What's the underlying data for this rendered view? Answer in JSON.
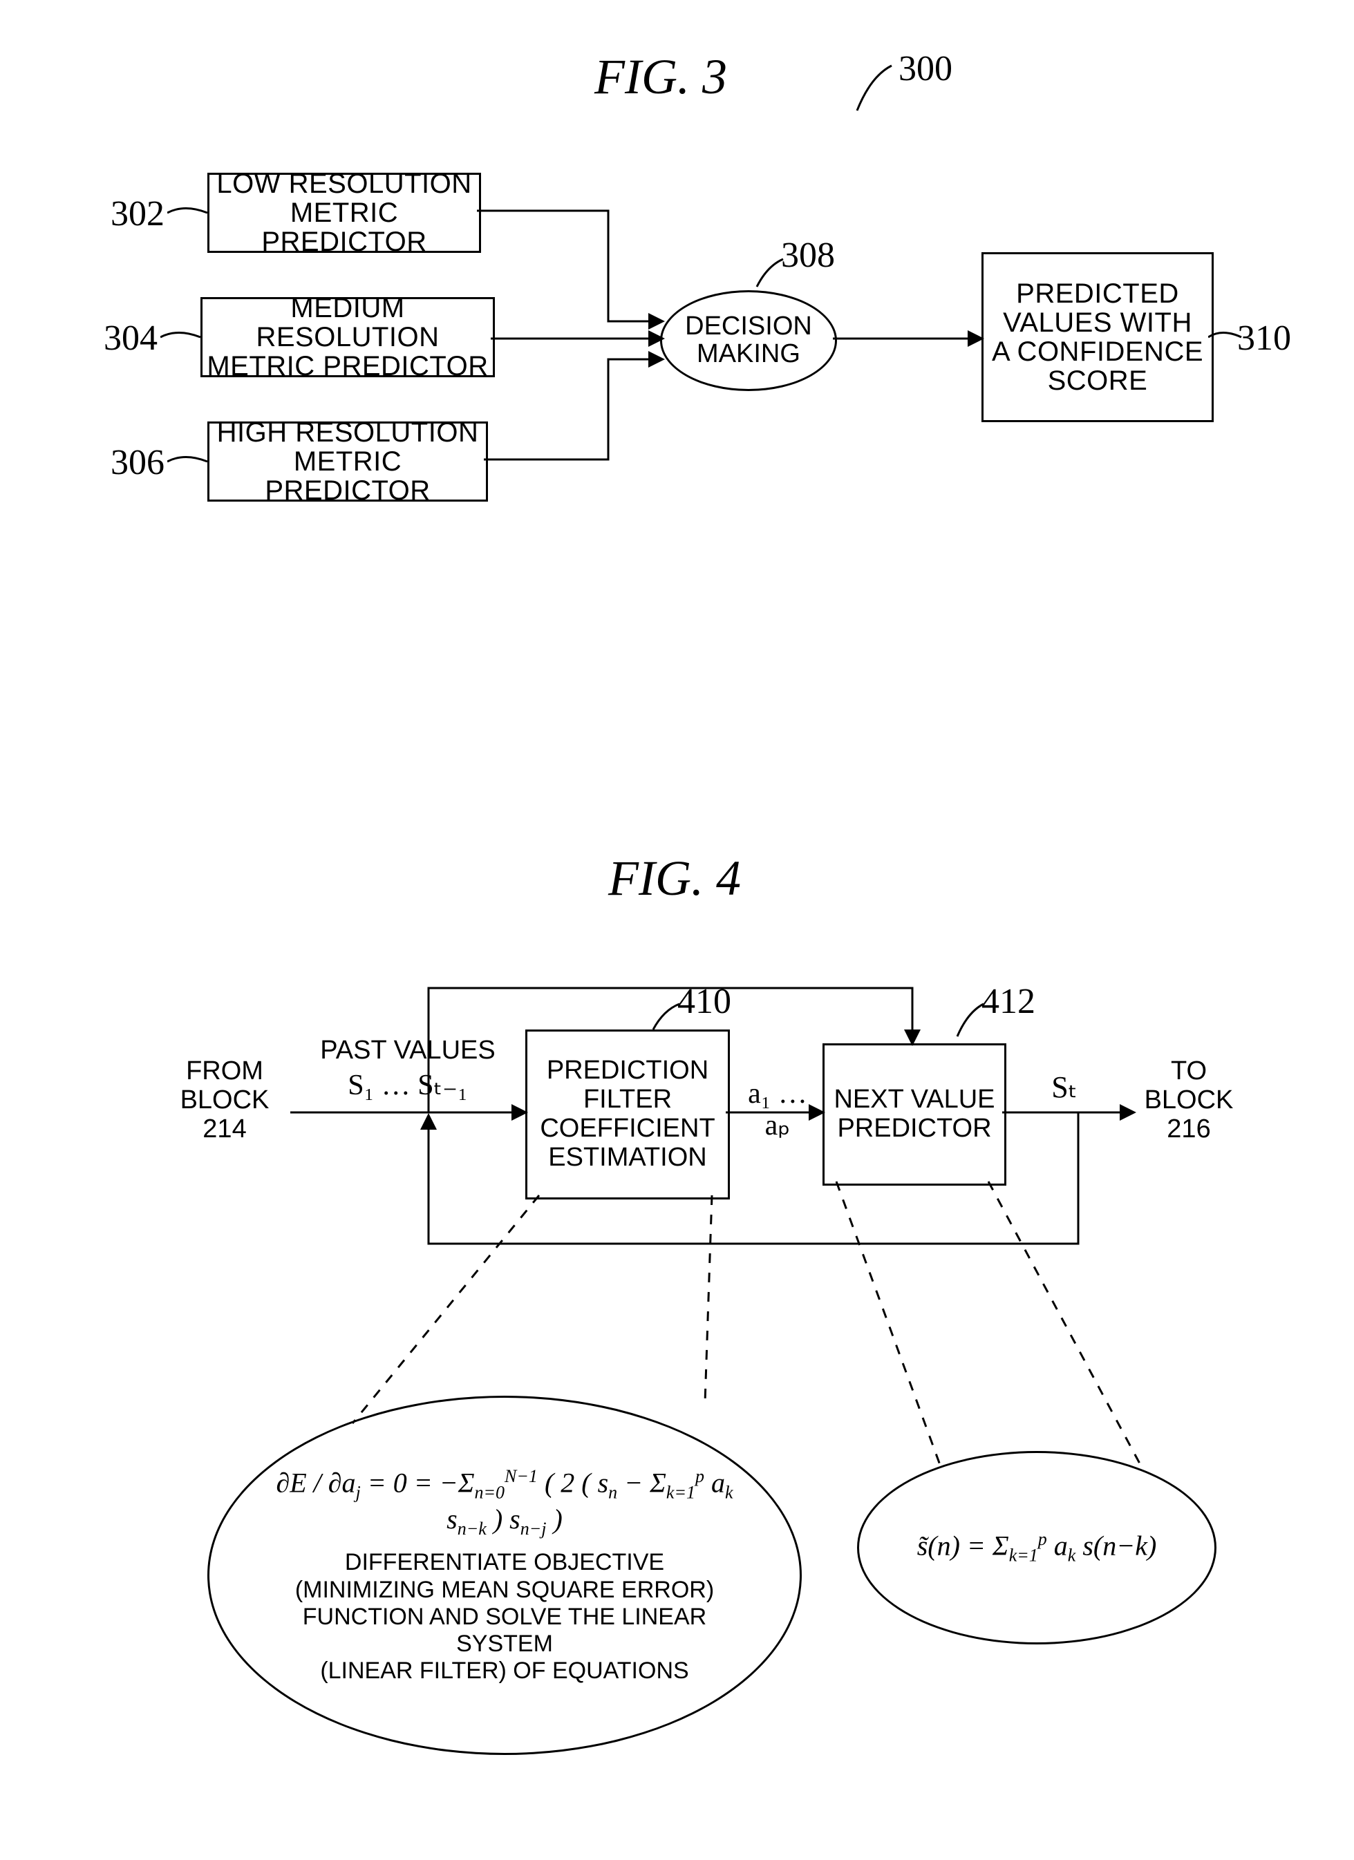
{
  "fig3": {
    "title": "FIG.  3",
    "ref300": "300",
    "box302": {
      "text": "LOW RESOLUTION\nMETRIC PREDICTOR",
      "ref": "302"
    },
    "box304": {
      "text": "MEDIUM RESOLUTION\nMETRIC PREDICTOR",
      "ref": "304"
    },
    "box306": {
      "text": "HIGH RESOLUTION\nMETRIC PREDICTOR",
      "ref": "306"
    },
    "decision": {
      "text": "DECISION\nMAKING",
      "ref": "308"
    },
    "box310": {
      "text": "PREDICTED\nVALUES WITH\nA CONFIDENCE\nSCORE",
      "ref": "310"
    },
    "style": {
      "box_border_color": "#000000",
      "box_bg_color": "#ffffff",
      "box_border_width": 3,
      "font_color": "#000000",
      "predictor_fontsize": 40,
      "decision_fontsize": 38,
      "reflabel_fontsize": 52,
      "title_fontsize": 72,
      "arrow_stroke": "#000000",
      "arrow_width": 3
    }
  },
  "fig4": {
    "title": "FIG.  4",
    "from_block": "FROM\nBLOCK\n214",
    "past_values_label": "PAST VALUES",
    "past_values_sym": "S₁ … Sₜ₋₁",
    "blk410": {
      "text": "PREDICTION\nFILTER\nCOEFFICIENT\nESTIMATION",
      "ref": "410"
    },
    "coeffs_sym": "a₁ … aₚ",
    "blk412": {
      "text": "NEXT VALUE\nPREDICTOR",
      "ref": "412"
    },
    "st_sym": "Sₜ",
    "to_block": "TO\nBLOCK\n216",
    "ellipse410": {
      "formula_html": "&#8706;E / &#8706;a<sub>j</sub> = 0 = &minus;&Sigma;<sub>n=0</sub><sup>N&minus;1</sup> ( 2 ( s<sub>n</sub> &minus; &Sigma;<sub>k=1</sub><sup>p</sup> a<sub>k</sub> s<sub>n&minus;k</sub> ) s<sub>n&minus;j</sub> )",
      "caption": "DIFFERENTIATE OBJECTIVE\n(MINIMIZING MEAN SQUARE ERROR)\nFUNCTION AND SOLVE THE LINEAR SYSTEM\n(LINEAR FILTER) OF EQUATIONS"
    },
    "ellipse412": {
      "formula_html": "s&#771;(n) = &Sigma;<sub>k=1</sub><sup>p</sup> a<sub>k</sub> s(n&minus;k)"
    },
    "style": {
      "box_border_color": "#000000",
      "box_bg_color": "#ffffff",
      "box_border_width": 3,
      "font_color": "#000000",
      "block_fontsize": 38,
      "formula_fontsize": 40,
      "caption_fontsize": 34,
      "title_fontsize": 72,
      "arrow_stroke": "#000000",
      "arrow_width": 3,
      "dash_pattern": "14 14"
    }
  }
}
